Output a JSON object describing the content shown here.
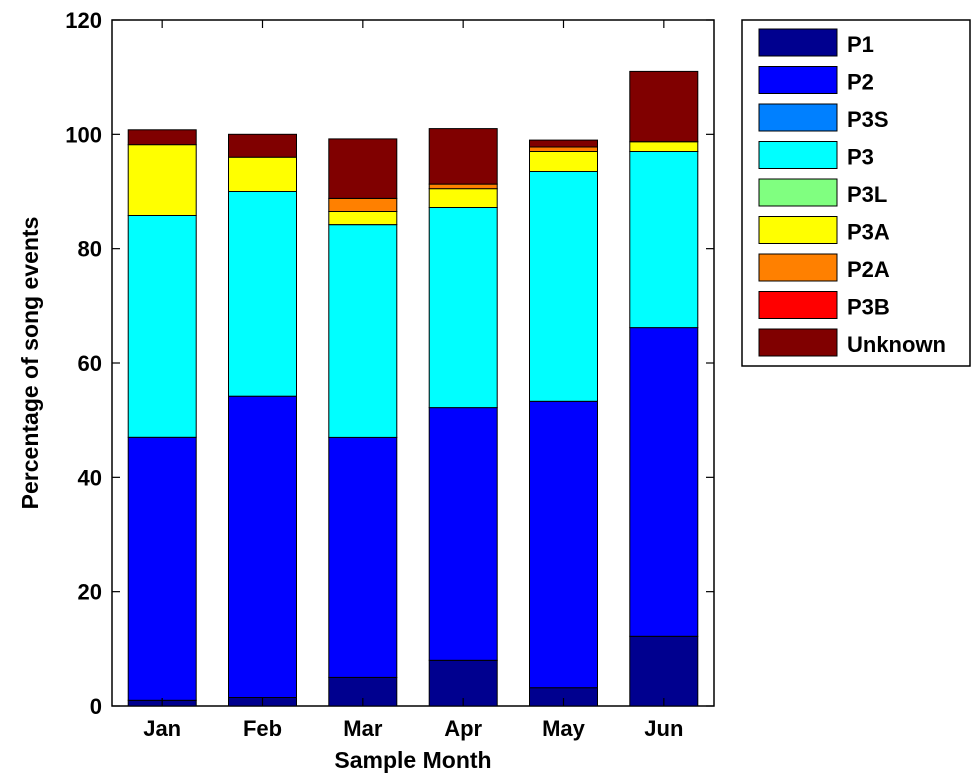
{
  "chart_data": {
    "type": "bar",
    "stacked": true,
    "categories": [
      "Jan",
      "Feb",
      "Mar",
      "Apr",
      "May",
      "Jun"
    ],
    "xlabel": "Sample Month",
    "ylabel": "Percentage of song events",
    "ylim": [
      0,
      120
    ],
    "yticks": [
      0,
      20,
      40,
      60,
      80,
      100,
      120
    ],
    "grid": false,
    "legend_position": "outside-right",
    "series": [
      {
        "name": "P1",
        "color": "#00008f",
        "values": [
          1,
          1.5,
          5,
          8,
          3.2,
          12.2
        ]
      },
      {
        "name": "P2",
        "color": "#0000ff",
        "values": [
          46,
          52.7,
          42,
          44.2,
          50.1,
          54
        ]
      },
      {
        "name": "P3S",
        "color": "#0080ff",
        "values": [
          0,
          0,
          0,
          0,
          0,
          0
        ]
      },
      {
        "name": "P3",
        "color": "#00ffff",
        "values": [
          38.8,
          35.8,
          37.2,
          35,
          40.2,
          30.8
        ]
      },
      {
        "name": "P3L",
        "color": "#80ff80",
        "values": [
          0,
          0,
          0,
          0,
          0,
          0
        ]
      },
      {
        "name": "P3A",
        "color": "#ffff00",
        "values": [
          12.4,
          6,
          2.3,
          3.3,
          3.5,
          1.7
        ]
      },
      {
        "name": "P2A",
        "color": "#ff8000",
        "values": [
          0,
          0,
          2.3,
          0.8,
          0.8,
          0
        ]
      },
      {
        "name": "P3B",
        "color": "#ff0000",
        "values": [
          0,
          0,
          0,
          0,
          0,
          0
        ]
      },
      {
        "name": "Unknown",
        "color": "#800000",
        "values": [
          2.6,
          4,
          10.4,
          9.7,
          1.2,
          12.3
        ]
      }
    ]
  }
}
